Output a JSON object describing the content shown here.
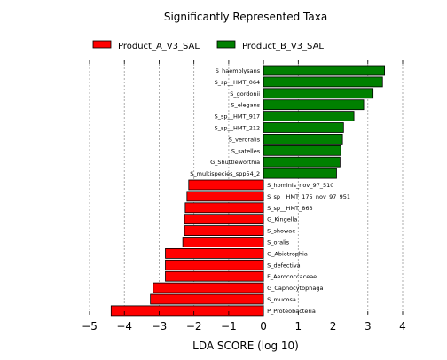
{
  "chart_data": {
    "type": "bar",
    "orientation": "horizontal",
    "title": "Significantly Represented Taxa",
    "xlabel": "LDA SCORE (log 10)",
    "ylabel": "",
    "xlim": [
      -5,
      4
    ],
    "xticks": [
      -5,
      -4,
      -3,
      -2,
      -1,
      0,
      1,
      2,
      3,
      4
    ],
    "xtick_labels": [
      "−5",
      "−4",
      "−3",
      "−2",
      "−1",
      "0",
      "1",
      "2",
      "3",
      "4"
    ],
    "grid": "vertical-dashed",
    "legend": {
      "placement": "top-left",
      "entries": [
        {
          "name": "Product_A_V3_SAL",
          "color": "#ff0000"
        },
        {
          "name": "Product_B_V3_SAL",
          "color": "#008000"
        }
      ]
    },
    "bars": [
      {
        "label": "S_haemolysans",
        "value": 3.48,
        "group": "Product_B_V3_SAL"
      },
      {
        "label": "S_sp__HMT_064",
        "value": 3.42,
        "group": "Product_B_V3_SAL"
      },
      {
        "label": "S_gordonii",
        "value": 3.15,
        "group": "Product_B_V3_SAL"
      },
      {
        "label": "S_elegans",
        "value": 2.88,
        "group": "Product_B_V3_SAL"
      },
      {
        "label": "S_sp__HMT_917",
        "value": 2.6,
        "group": "Product_B_V3_SAL"
      },
      {
        "label": "S_sp__HMT_212",
        "value": 2.3,
        "group": "Product_B_V3_SAL"
      },
      {
        "label": "S_veroralis",
        "value": 2.27,
        "group": "Product_B_V3_SAL"
      },
      {
        "label": "S_satelles",
        "value": 2.22,
        "group": "Product_B_V3_SAL"
      },
      {
        "label": "G_Shuttleworthia",
        "value": 2.2,
        "group": "Product_B_V3_SAL"
      },
      {
        "label": "S_multispecies_spp54_2",
        "value": 2.1,
        "group": "Product_B_V3_SAL"
      },
      {
        "label": "S_hominis_nov_97_510",
        "value": -2.15,
        "group": "Product_A_V3_SAL"
      },
      {
        "label": "S_sp__HMT_175_nov_97_951",
        "value": -2.2,
        "group": "Product_A_V3_SAL"
      },
      {
        "label": "S_sp__HMT_863",
        "value": -2.25,
        "group": "Product_A_V3_SAL"
      },
      {
        "label": "G_Kingella",
        "value": -2.27,
        "group": "Product_A_V3_SAL"
      },
      {
        "label": "S_showae",
        "value": -2.27,
        "group": "Product_A_V3_SAL"
      },
      {
        "label": "S_oralis",
        "value": -2.32,
        "group": "Product_A_V3_SAL"
      },
      {
        "label": "G_Abiotrophia",
        "value": -2.82,
        "group": "Product_A_V3_SAL"
      },
      {
        "label": "S_defectiva",
        "value": -2.82,
        "group": "Product_A_V3_SAL"
      },
      {
        "label": "F_Aerococcaceae",
        "value": -2.82,
        "group": "Product_A_V3_SAL"
      },
      {
        "label": "G_Capnocytophaga",
        "value": -3.17,
        "group": "Product_A_V3_SAL"
      },
      {
        "label": "S_mucosa",
        "value": -3.25,
        "group": "Product_A_V3_SAL"
      },
      {
        "label": "P_Proteobacteria",
        "value": -4.38,
        "group": "Product_A_V3_SAL"
      }
    ]
  }
}
